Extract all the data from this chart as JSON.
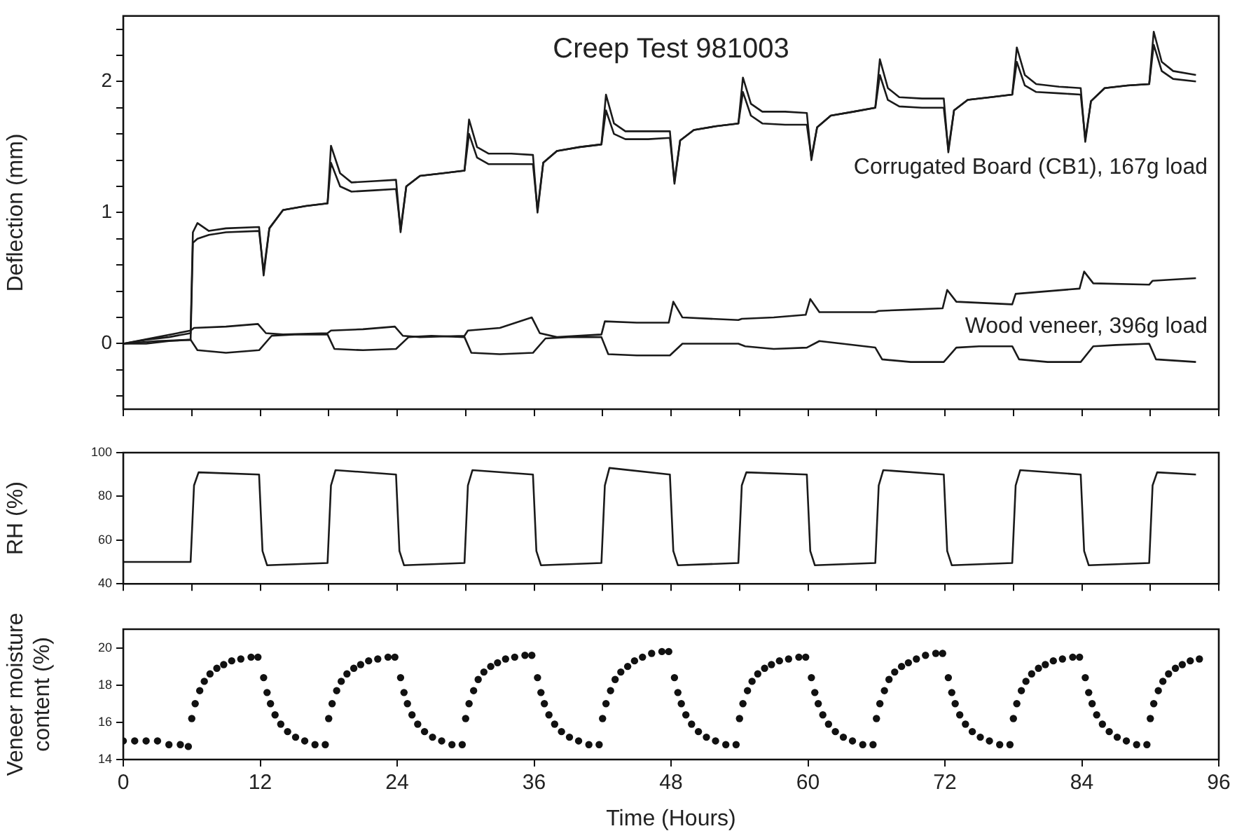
{
  "chart_data": [
    {
      "type": "line",
      "title": "Creep Test 981003",
      "ylabel": "Deflection (mm)",
      "xlim": [
        0,
        96
      ],
      "xticks": [
        {
          "value": 0,
          "label": null
        },
        {
          "value": 6,
          "label": null
        },
        {
          "value": 12,
          "label": null
        },
        {
          "value": 18,
          "label": null
        },
        {
          "value": 24,
          "label": null
        },
        {
          "value": 30,
          "label": null
        },
        {
          "value": 36,
          "label": null
        },
        {
          "value": 42,
          "label": null
        },
        {
          "value": 48,
          "label": null
        },
        {
          "value": 54,
          "label": null
        },
        {
          "value": 60,
          "label": null
        },
        {
          "value": 66,
          "label": null
        },
        {
          "value": 72,
          "label": null
        },
        {
          "value": 78,
          "label": null
        },
        {
          "value": 84,
          "label": null
        },
        {
          "value": 90,
          "label": null
        },
        {
          "value": 96,
          "label": null
        }
      ],
      "ylim": [
        -0.5,
        2.5
      ],
      "yticks": [
        {
          "value": -0.4,
          "label": null
        },
        {
          "value": -0.2,
          "label": null
        },
        0,
        {
          "value": 0.2,
          "label": null
        },
        {
          "value": 0.4,
          "label": null
        },
        {
          "value": 0.6,
          "label": null
        },
        {
          "value": 0.8,
          "label": null
        },
        1,
        {
          "value": 1.2,
          "label": null
        },
        {
          "value": 1.4,
          "label": null
        },
        {
          "value": 1.6,
          "label": null
        },
        {
          "value": 1.8,
          "label": null
        },
        2,
        {
          "value": 2.2,
          "label": null
        },
        {
          "value": 2.4,
          "label": null
        }
      ],
      "tick_labels": "y",
      "grid": false,
      "marker": "none",
      "line_style": "solid",
      "annotations": [
        "Corrugated Board (CB1), 167g load",
        "Wood veneer, 396g load"
      ],
      "series": [
        {
          "color": "#1a1a1a",
          "x": [
            0,
            2,
            4,
            5.9,
            6.1,
            6.5,
            7.5,
            9,
            11.9,
            12.3,
            12.8,
            14,
            16,
            17.9,
            18.2,
            19,
            20,
            22,
            23.9,
            24.3,
            24.8,
            26,
            28,
            29.9,
            30.3,
            31,
            32,
            34,
            35.9,
            36.3,
            36.8,
            38,
            40,
            41.9,
            42.3,
            43,
            44,
            46,
            47.9,
            48.3,
            48.8,
            50,
            52,
            53.9,
            54.3,
            55,
            56,
            58,
            59.9,
            60.3,
            60.8,
            62,
            64,
            65.9,
            66.3,
            67,
            68,
            70,
            71.9,
            72.3,
            72.8,
            74,
            76,
            77.9,
            78.3,
            79,
            80,
            82,
            83.9,
            84.3,
            84.8,
            86,
            88,
            89.9,
            90.3,
            91,
            92,
            94
          ],
          "values": [
            0,
            0.03,
            0.05,
            0.08,
            0.85,
            0.92,
            0.86,
            0.88,
            0.89,
            0.52,
            0.88,
            1.02,
            1.05,
            1.07,
            1.51,
            1.3,
            1.23,
            1.24,
            1.25,
            0.85,
            1.2,
            1.28,
            1.3,
            1.32,
            1.71,
            1.5,
            1.45,
            1.45,
            1.44,
            1.0,
            1.38,
            1.47,
            1.5,
            1.52,
            1.9,
            1.68,
            1.62,
            1.62,
            1.62,
            1.22,
            1.55,
            1.63,
            1.66,
            1.68,
            2.03,
            1.83,
            1.77,
            1.77,
            1.76,
            1.4,
            1.65,
            1.74,
            1.77,
            1.8,
            2.17,
            1.95,
            1.88,
            1.87,
            1.87,
            1.46,
            1.78,
            1.86,
            1.88,
            1.9,
            2.26,
            2.05,
            1.98,
            1.96,
            1.95,
            1.54,
            1.85,
            1.95,
            1.97,
            1.98,
            2.38,
            2.15,
            2.08,
            2.05
          ]
        },
        {
          "color": "#1a1a1a",
          "x": [
            0,
            2,
            4,
            5.9,
            6.1,
            6.5,
            7.5,
            9,
            11.9,
            12.3,
            12.8,
            14,
            16,
            17.9,
            18.2,
            19,
            20,
            22,
            23.9,
            24.3,
            24.8,
            26,
            28,
            29.9,
            30.3,
            31,
            32,
            34,
            35.9,
            36.3,
            36.8,
            38,
            40,
            41.9,
            42.3,
            43,
            44,
            46,
            47.9,
            48.3,
            48.8,
            50,
            52,
            53.9,
            54.3,
            55,
            56,
            58,
            59.9,
            60.3,
            60.8,
            62,
            64,
            65.9,
            66.3,
            67,
            68,
            70,
            71.9,
            72.3,
            72.8,
            74,
            76,
            77.9,
            78.3,
            79,
            80,
            82,
            83.9,
            84.3,
            84.8,
            86,
            88,
            89.9,
            90.3,
            91,
            92,
            94
          ],
          "values": [
            0,
            0.0,
            0.02,
            0.03,
            0.77,
            0.8,
            0.83,
            0.85,
            0.86,
            0.55,
            0.88,
            1.02,
            1.05,
            1.07,
            1.38,
            1.2,
            1.16,
            1.17,
            1.18,
            0.87,
            1.2,
            1.28,
            1.3,
            1.32,
            1.6,
            1.42,
            1.37,
            1.37,
            1.37,
            1.02,
            1.38,
            1.47,
            1.5,
            1.52,
            1.78,
            1.6,
            1.56,
            1.56,
            1.57,
            1.24,
            1.55,
            1.63,
            1.66,
            1.68,
            1.92,
            1.74,
            1.68,
            1.67,
            1.67,
            1.42,
            1.65,
            1.74,
            1.77,
            1.8,
            2.05,
            1.86,
            1.81,
            1.8,
            1.8,
            1.48,
            1.78,
            1.86,
            1.88,
            1.9,
            2.15,
            1.97,
            1.92,
            1.91,
            1.9,
            1.56,
            1.85,
            1.95,
            1.97,
            1.98,
            2.28,
            2.08,
            2.02,
            2.0
          ]
        },
        {
          "color": "#1a1a1a",
          "x": [
            0,
            3,
            5.9,
            6.2,
            9,
            11.8,
            12.5,
            14,
            17.9,
            18.2,
            21,
            23.8,
            24.5,
            26,
            29.9,
            30.2,
            33,
            35.8,
            36.5,
            38,
            41.9,
            42.2,
            45,
            47.8,
            48.2,
            49,
            53.9,
            54.2,
            57,
            59.8,
            60.2,
            61,
            65.9,
            66.2,
            69,
            71.8,
            72.2,
            73,
            77.9,
            78.2,
            81,
            83.8,
            84.2,
            85,
            89.9,
            90.2,
            94
          ],
          "values": [
            0,
            0.05,
            0.1,
            0.12,
            0.13,
            0.15,
            0.08,
            0.07,
            0.08,
            0.1,
            0.11,
            0.13,
            0.06,
            0.05,
            0.06,
            0.1,
            0.12,
            0.2,
            0.08,
            0.05,
            0.07,
            0.17,
            0.16,
            0.16,
            0.32,
            0.2,
            0.18,
            0.19,
            0.2,
            0.22,
            0.34,
            0.24,
            0.24,
            0.25,
            0.26,
            0.27,
            0.41,
            0.32,
            0.3,
            0.38,
            0.4,
            0.42,
            0.55,
            0.46,
            0.45,
            0.48,
            0.5
          ]
        },
        {
          "color": "#1a1a1a",
          "x": [
            0,
            3,
            5.9,
            6.5,
            9,
            11.9,
            13,
            15,
            17.9,
            18.5,
            21,
            23.9,
            25,
            27,
            29.9,
            30.5,
            33,
            35.9,
            37,
            39,
            41.9,
            42.5,
            45,
            47.9,
            49,
            51,
            53.9,
            54.5,
            57,
            59.9,
            61,
            63,
            65.9,
            66.5,
            69,
            71.9,
            73,
            75,
            77.9,
            78.5,
            81,
            83.9,
            85,
            87,
            89.9,
            90.5,
            94
          ],
          "values": [
            0,
            0.02,
            0.03,
            -0.05,
            -0.07,
            -0.05,
            0.06,
            0.07,
            0.07,
            -0.04,
            -0.05,
            -0.04,
            0.05,
            0.06,
            0.05,
            -0.07,
            -0.08,
            -0.07,
            0.04,
            0.05,
            0.05,
            -0.08,
            -0.09,
            -0.09,
            0.0,
            0.0,
            0.0,
            -0.02,
            -0.04,
            -0.03,
            0.02,
            0.0,
            -0.03,
            -0.12,
            -0.14,
            -0.14,
            -0.03,
            -0.02,
            -0.02,
            -0.12,
            -0.14,
            -0.14,
            -0.02,
            -0.01,
            0.0,
            -0.12,
            -0.14
          ]
        }
      ]
    },
    {
      "type": "line",
      "ylabel": "RH (%)",
      "xlim": [
        0,
        96
      ],
      "xticks": [
        {
          "value": 0,
          "label": null
        },
        {
          "value": 6,
          "label": null
        },
        {
          "value": 12,
          "label": null
        },
        {
          "value": 18,
          "label": null
        },
        {
          "value": 24,
          "label": null
        },
        {
          "value": 30,
          "label": null
        },
        {
          "value": 36,
          "label": null
        },
        {
          "value": 42,
          "label": null
        },
        {
          "value": 48,
          "label": null
        },
        {
          "value": 54,
          "label": null
        },
        {
          "value": 60,
          "label": null
        },
        {
          "value": 66,
          "label": null
        },
        {
          "value": 72,
          "label": null
        },
        {
          "value": 78,
          "label": null
        },
        {
          "value": 84,
          "label": null
        },
        {
          "value": 90,
          "label": null
        },
        {
          "value": 96,
          "label": null
        }
      ],
      "ylim": [
        40,
        100
      ],
      "yticks": [
        40,
        60,
        80,
        100
      ],
      "tick_labels": "y",
      "grid": false,
      "marker": "none",
      "line_style": "solid",
      "series": [
        {
          "color": "#1a1a1a",
          "x": [
            0,
            5.9,
            6.2,
            6.6,
            11.9,
            12.2,
            12.6,
            17.9,
            18.2,
            18.6,
            23.9,
            24.2,
            24.6,
            29.9,
            30.2,
            30.6,
            35.9,
            36.2,
            36.6,
            41.9,
            42.2,
            42.6,
            47.9,
            48.2,
            48.6,
            53.9,
            54.2,
            54.6,
            59.9,
            60.2,
            60.6,
            65.9,
            66.2,
            66.6,
            71.9,
            72.2,
            72.6,
            77.9,
            78.2,
            78.6,
            83.9,
            84.2,
            84.6,
            89.9,
            90.2,
            90.6,
            94
          ],
          "values": [
            50,
            50,
            85,
            91,
            90,
            55,
            48.5,
            49.5,
            85,
            92,
            90,
            55,
            48.5,
            49.5,
            85,
            92,
            90,
            55,
            48.5,
            49.5,
            85,
            93,
            90,
            55,
            48.5,
            49.5,
            85,
            91,
            90,
            55,
            48.5,
            49.5,
            85,
            92,
            90,
            55,
            48.5,
            49.5,
            85,
            92,
            90,
            55,
            48.5,
            49.5,
            85,
            91,
            90
          ]
        }
      ]
    },
    {
      "type": "scatter",
      "xlabel": "Time (Hours)",
      "ylabel": "Veneer moisture content (%)",
      "xlim": [
        0,
        96
      ],
      "xticks": [
        0,
        12,
        24,
        36,
        48,
        60,
        72,
        84,
        96
      ],
      "ylim": [
        14,
        21
      ],
      "yticks": [
        14,
        16,
        18,
        20
      ],
      "grid": false,
      "marker": "circle",
      "series": [
        {
          "color": "#111111",
          "x": [
            0,
            1,
            2,
            3,
            4,
            5,
            5.7,
            6,
            6.3,
            6.7,
            7.1,
            7.6,
            8.2,
            8.8,
            9.5,
            10.3,
            11.2,
            11.8,
            12.3,
            12.6,
            12.9,
            13.3,
            13.8,
            14.4,
            15.1,
            15.9,
            16.8,
            17.7,
            18,
            18.3,
            18.7,
            19.1,
            19.6,
            20.2,
            20.8,
            21.5,
            22.3,
            23.2,
            23.8,
            24.3,
            24.6,
            24.9,
            25.3,
            25.8,
            26.4,
            27.1,
            27.9,
            28.8,
            29.7,
            30,
            30.3,
            30.7,
            31.1,
            31.6,
            32.2,
            32.8,
            33.5,
            34.3,
            35.2,
            35.8,
            36.3,
            36.6,
            36.9,
            37.3,
            37.8,
            38.4,
            39.1,
            39.9,
            40.8,
            41.7,
            42,
            42.3,
            42.7,
            43.1,
            43.6,
            44.2,
            44.8,
            45.5,
            46.3,
            47.2,
            47.8,
            48.3,
            48.6,
            48.9,
            49.3,
            49.8,
            50.4,
            51.1,
            51.9,
            52.8,
            53.7,
            54,
            54.3,
            54.7,
            55.1,
            55.6,
            56.2,
            56.8,
            57.5,
            58.3,
            59.2,
            59.8,
            60.3,
            60.6,
            60.9,
            61.3,
            61.8,
            62.4,
            63.1,
            63.9,
            64.8,
            65.7,
            66,
            66.3,
            66.7,
            67.1,
            67.6,
            68.2,
            68.8,
            69.5,
            70.3,
            71.2,
            71.8,
            72.3,
            72.6,
            72.9,
            73.3,
            73.8,
            74.4,
            75.1,
            75.9,
            76.8,
            77.7,
            78,
            78.3,
            78.7,
            79.1,
            79.6,
            80.2,
            80.8,
            81.5,
            82.3,
            83.2,
            83.8,
            84.3,
            84.6,
            84.9,
            85.3,
            85.8,
            86.4,
            87.1,
            87.9,
            88.8,
            89.7,
            90,
            90.3,
            90.7,
            91.1,
            91.6,
            92.2,
            92.8,
            93.5,
            94.3
          ],
          "values": [
            15,
            15,
            15,
            15,
            14.8,
            14.8,
            14.7,
            16.2,
            17.0,
            17.7,
            18.2,
            18.6,
            18.9,
            19.1,
            19.3,
            19.4,
            19.5,
            19.5,
            18.4,
            17.6,
            17.0,
            16.4,
            15.9,
            15.5,
            15.2,
            15.0,
            14.8,
            14.8,
            16.2,
            17.0,
            17.7,
            18.2,
            18.6,
            18.9,
            19.1,
            19.3,
            19.4,
            19.5,
            19.5,
            18.4,
            17.6,
            17.0,
            16.4,
            15.9,
            15.5,
            15.2,
            15.0,
            14.8,
            14.8,
            16.2,
            17.0,
            17.7,
            18.3,
            18.7,
            19.0,
            19.2,
            19.4,
            19.5,
            19.6,
            19.6,
            18.4,
            17.6,
            17.0,
            16.4,
            15.9,
            15.5,
            15.2,
            15.0,
            14.8,
            14.8,
            16.2,
            17.0,
            17.7,
            18.3,
            18.7,
            19.0,
            19.3,
            19.5,
            19.7,
            19.8,
            19.8,
            18.4,
            17.6,
            17.0,
            16.4,
            15.9,
            15.5,
            15.2,
            15.0,
            14.8,
            14.8,
            16.2,
            17.0,
            17.7,
            18.2,
            18.6,
            18.9,
            19.1,
            19.3,
            19.4,
            19.5,
            19.5,
            18.4,
            17.6,
            17.0,
            16.4,
            15.9,
            15.5,
            15.2,
            15.0,
            14.8,
            14.8,
            16.2,
            17.0,
            17.7,
            18.3,
            18.7,
            19.0,
            19.2,
            19.4,
            19.6,
            19.7,
            19.7,
            18.4,
            17.6,
            17.0,
            16.4,
            15.9,
            15.5,
            15.2,
            15.0,
            14.8,
            14.8,
            16.2,
            17.0,
            17.7,
            18.2,
            18.6,
            18.9,
            19.1,
            19.3,
            19.4,
            19.5,
            19.5,
            18.4,
            17.6,
            17.0,
            16.4,
            15.9,
            15.5,
            15.2,
            15.0,
            14.8,
            14.8,
            16.2,
            17.0,
            17.7,
            18.2,
            18.6,
            18.9,
            19.1,
            19.3,
            19.4
          ]
        }
      ]
    }
  ]
}
